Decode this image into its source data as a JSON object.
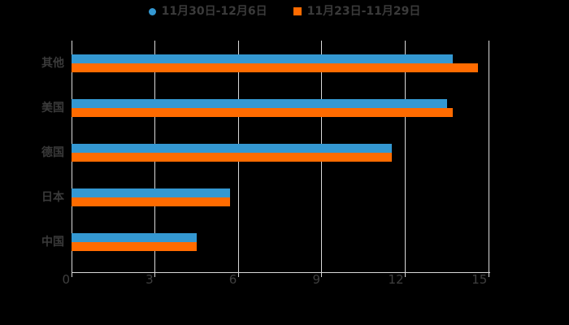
{
  "chart_data": {
    "type": "bar",
    "orientation": "horizontal",
    "title": "",
    "categories": [
      "其他",
      "美国",
      "德国",
      "日本",
      "中国"
    ],
    "series": [
      {
        "name": "11月30日-12月6日",
        "color": "#3498d2",
        "legend_marker": "circle",
        "values": [
          13.7,
          13.5,
          11.5,
          5.7,
          4.5
        ]
      },
      {
        "name": "11月23日-11月29日",
        "color": "#ff6b00",
        "legend_marker": "square",
        "values": [
          14.6,
          13.7,
          11.5,
          5.7,
          4.5
        ]
      }
    ],
    "xlabel": "",
    "ylabel": "",
    "xlim": [
      0,
      15
    ],
    "xticks": [
      0,
      3,
      6,
      9,
      12,
      15
    ],
    "grid": true,
    "legend_position": "top-center",
    "background_color": "#000000",
    "grid_color": "#d9d9d9",
    "axis_color": "#d9d9d9",
    "text_color": "#3a3a3a"
  }
}
